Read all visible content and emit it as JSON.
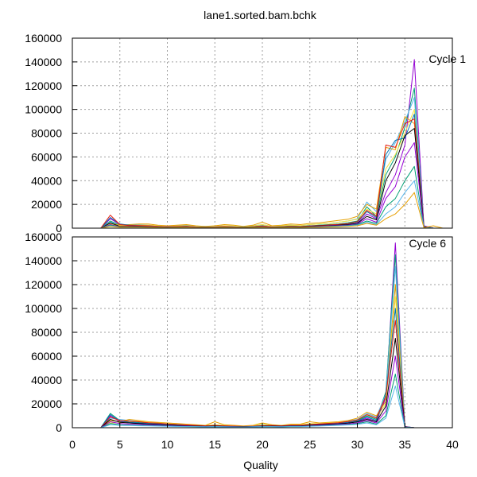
{
  "chart_data": [
    {
      "type": "line",
      "title": "lane1.sorted.bam.bchk",
      "annotation": "Cycle 1",
      "xlabel": "",
      "ylabel": "",
      "xlim": [
        0,
        40
      ],
      "ylim": [
        0,
        160000
      ],
      "x_ticks": [],
      "y_ticks": [
        "0",
        "20000",
        "40000",
        "60000",
        "80000",
        "100000",
        "120000",
        "140000",
        "160000"
      ],
      "grid": true,
      "legend": "none",
      "colors": [
        "#9400d3",
        "#009e73",
        "#56b4e9",
        "#e69f00",
        "#f0e442",
        "#0072b2",
        "#e51e10",
        "#000000"
      ],
      "x": [
        3,
        4,
        5,
        6,
        7,
        8,
        9,
        10,
        11,
        12,
        13,
        14,
        15,
        16,
        17,
        18,
        19,
        20,
        21,
        22,
        23,
        24,
        25,
        26,
        27,
        28,
        29,
        30,
        31,
        32,
        33,
        34,
        35,
        36,
        37,
        38,
        39
      ],
      "series": [
        {
          "values": [
            0,
            8000,
            3000,
            2000,
            2000,
            1500,
            1000,
            1500,
            1000,
            1000,
            1000,
            1000,
            800,
            800,
            800,
            800,
            800,
            900,
            900,
            900,
            1000,
            1000,
            1200,
            1200,
            1500,
            2000,
            3000,
            4000,
            12000,
            8000,
            30000,
            45000,
            70000,
            142000,
            2000,
            0,
            0
          ]
        },
        {
          "values": [
            0,
            6000,
            2500,
            2000,
            2500,
            2000,
            1500,
            1200,
            1500,
            1800,
            1200,
            1000,
            1200,
            1500,
            1000,
            800,
            1500,
            2000,
            1200,
            1500,
            1800,
            1500,
            2000,
            2500,
            3000,
            3500,
            4500,
            6000,
            18000,
            10000,
            45000,
            60000,
            85000,
            118000,
            1500,
            0,
            0
          ]
        },
        {
          "values": [
            0,
            5000,
            2000,
            2500,
            3000,
            2500,
            2000,
            1500,
            2000,
            2500,
            1500,
            1200,
            1500,
            2000,
            1500,
            1000,
            2000,
            3000,
            1500,
            2000,
            2500,
            2000,
            3000,
            3500,
            4000,
            5000,
            6000,
            8000,
            22000,
            14000,
            58000,
            72000,
            90000,
            110000,
            1200,
            0,
            0
          ]
        },
        {
          "values": [
            0,
            4000,
            2500,
            3000,
            3500,
            3500,
            2500,
            2000,
            2500,
            3000,
            2000,
            1500,
            2000,
            3000,
            2500,
            1500,
            2500,
            5000,
            2000,
            2500,
            3500,
            3000,
            4000,
            4500,
            5500,
            6500,
            7500,
            10000,
            20000,
            16000,
            68000,
            66000,
            94000,
            88000,
            1000,
            0,
            0
          ]
        },
        {
          "values": [
            0,
            3500,
            2000,
            2000,
            2500,
            2500,
            2000,
            1500,
            1800,
            2000,
            1500,
            1200,
            1500,
            2000,
            1800,
            1200,
            1800,
            3000,
            1500,
            2000,
            2500,
            2200,
            3000,
            3500,
            4000,
            5000,
            6000,
            7500,
            16000,
            12000,
            50000,
            62000,
            80000,
            100000,
            800,
            0,
            0
          ]
        },
        {
          "values": [
            0,
            9000,
            3500,
            2500,
            2000,
            1800,
            1500,
            1200,
            1200,
            1500,
            1000,
            900,
            1000,
            1200,
            1000,
            900,
            1200,
            1500,
            1000,
            1200,
            1500,
            1300,
            1800,
            2000,
            2500,
            3000,
            3500,
            5000,
            14000,
            9000,
            62000,
            74000,
            76000,
            96000,
            1500,
            0,
            0
          ]
        },
        {
          "values": [
            0,
            11000,
            3000,
            2200,
            2200,
            2000,
            1500,
            1300,
            1400,
            1600,
            1100,
            1000,
            1100,
            1400,
            1100,
            900,
            1300,
            1800,
            1100,
            1300,
            1600,
            1400,
            1900,
            2200,
            2700,
            3200,
            3800,
            5500,
            15000,
            10000,
            70000,
            68000,
            88000,
            92000,
            1200,
            0,
            0
          ]
        },
        {
          "values": [
            0,
            4500,
            1500,
            1500,
            1500,
            1200,
            1000,
            1000,
            1000,
            1200,
            900,
            800,
            900,
            1000,
            900,
            800,
            1000,
            1200,
            900,
            1000,
            1200,
            1100,
            1500,
            1800,
            2000,
            2500,
            3000,
            4000,
            10000,
            7000,
            40000,
            55000,
            78000,
            84000,
            1000,
            0,
            0
          ]
        },
        {
          "values": [
            0,
            3000,
            1200,
            1200,
            1200,
            1000,
            900,
            800,
            900,
            1000,
            800,
            700,
            800,
            900,
            800,
            700,
            900,
            1000,
            800,
            900,
            1000,
            900,
            1200,
            1500,
            1800,
            2200,
            2600,
            3500,
            8000,
            5000,
            25000,
            35000,
            60000,
            72000,
            800,
            0,
            0
          ]
        },
        {
          "values": [
            0,
            2500,
            1000,
            1000,
            1000,
            900,
            800,
            700,
            800,
            900,
            700,
            600,
            700,
            800,
            700,
            600,
            800,
            900,
            700,
            800,
            900,
            800,
            1000,
            1200,
            1500,
            1800,
            2200,
            3000,
            6000,
            4000,
            18000,
            25000,
            40000,
            52000,
            600,
            0,
            0
          ]
        },
        {
          "values": [
            0,
            2000,
            900,
            900,
            900,
            800,
            700,
            600,
            700,
            800,
            600,
            500,
            600,
            700,
            600,
            500,
            700,
            800,
            600,
            700,
            800,
            700,
            900,
            1000,
            1200,
            1500,
            1800,
            2500,
            5000,
            3000,
            12000,
            18000,
            30000,
            40000,
            500,
            0,
            0
          ]
        },
        {
          "values": [
            0,
            1500,
            800,
            800,
            800,
            700,
            600,
            500,
            600,
            700,
            500,
            400,
            500,
            600,
            500,
            400,
            600,
            700,
            500,
            600,
            700,
            600,
            800,
            900,
            1000,
            1200,
            1500,
            2000,
            4000,
            2500,
            8000,
            12000,
            20000,
            30000,
            400,
            2000,
            0
          ]
        }
      ]
    },
    {
      "type": "line",
      "title": "",
      "annotation": "Cycle 6",
      "xlabel": "Quality",
      "ylabel": "",
      "xlim": [
        0,
        40
      ],
      "ylim": [
        0,
        160000
      ],
      "x_ticks": [
        "0",
        "5",
        "10",
        "15",
        "20",
        "25",
        "30",
        "35",
        "40"
      ],
      "y_ticks": [
        "0",
        "20000",
        "40000",
        "60000",
        "80000",
        "100000",
        "120000",
        "140000",
        "160000"
      ],
      "grid": true,
      "legend": "none",
      "colors": [
        "#9400d3",
        "#009e73",
        "#56b4e9",
        "#e69f00",
        "#f0e442",
        "#0072b2",
        "#e51e10",
        "#000000"
      ],
      "x": [
        3,
        4,
        5,
        6,
        7,
        8,
        9,
        10,
        11,
        12,
        13,
        14,
        15,
        16,
        17,
        18,
        19,
        20,
        21,
        22,
        23,
        24,
        25,
        26,
        27,
        28,
        29,
        30,
        31,
        32,
        33,
        34,
        35,
        36
      ],
      "series": [
        {
          "values": [
            0,
            10000,
            5000,
            4000,
            3500,
            3000,
            2500,
            2000,
            1500,
            1500,
            1200,
            1000,
            1200,
            1000,
            800,
            800,
            900,
            1000,
            1200,
            1200,
            1500,
            1500,
            2000,
            2500,
            3000,
            3500,
            4000,
            5000,
            8000,
            5000,
            25000,
            155000,
            1000,
            0
          ]
        },
        {
          "values": [
            0,
            12000,
            6000,
            5000,
            4500,
            4000,
            3500,
            3000,
            2500,
            2000,
            1800,
            1500,
            1800,
            1500,
            1200,
            1000,
            1200,
            1500,
            1800,
            1500,
            2000,
            2000,
            2500,
            3000,
            3500,
            4000,
            5000,
            6000,
            10000,
            7000,
            30000,
            145000,
            800,
            0
          ]
        },
        {
          "values": [
            0,
            8000,
            7000,
            6000,
            5000,
            4500,
            4000,
            3500,
            3000,
            2500,
            2000,
            1800,
            2000,
            1800,
            1500,
            1200,
            1500,
            2000,
            2000,
            1800,
            2500,
            2500,
            3000,
            3500,
            4000,
            4500,
            5500,
            7000,
            12000,
            9000,
            28000,
            135000,
            700,
            0
          ]
        },
        {
          "values": [
            0,
            6000,
            5000,
            7000,
            6000,
            5000,
            4500,
            4000,
            3500,
            3000,
            2500,
            2000,
            5000,
            2500,
            2000,
            1500,
            2000,
            4000,
            2500,
            2000,
            3000,
            3000,
            5000,
            4000,
            4500,
            5000,
            6000,
            8000,
            13000,
            10000,
            22000,
            120000,
            600,
            0
          ]
        },
        {
          "values": [
            0,
            4000,
            4000,
            5000,
            5500,
            4500,
            4000,
            3500,
            3000,
            2500,
            2000,
            1800,
            2500,
            2000,
            1500,
            1200,
            1800,
            3000,
            2000,
            1800,
            2500,
            2500,
            3500,
            3500,
            4000,
            4500,
            5000,
            6500,
            11000,
            8000,
            20000,
            110000,
            500,
            0
          ]
        },
        {
          "values": [
            0,
            11000,
            5500,
            4500,
            4000,
            3500,
            3000,
            2500,
            2000,
            1800,
            1500,
            1300,
            1500,
            1300,
            1000,
            900,
            1100,
            1300,
            1500,
            1400,
            1800,
            1800,
            2300,
            2800,
            3300,
            3800,
            4500,
            5500,
            9000,
            6000,
            27000,
            100000,
            900,
            0
          ]
        },
        {
          "values": [
            0,
            9000,
            6000,
            5500,
            5000,
            4200,
            3800,
            3200,
            2800,
            2300,
            1900,
            1600,
            1900,
            1600,
            1300,
            1100,
            1300,
            1700,
            1900,
            1600,
            2100,
            2100,
            2700,
            3200,
            3700,
            4200,
            5200,
            6500,
            11000,
            8000,
            26000,
            90000,
            700,
            0
          ]
        },
        {
          "values": [
            0,
            7000,
            4500,
            4000,
            3500,
            3000,
            2600,
            2200,
            1800,
            1600,
            1300,
            1100,
            1300,
            1100,
            900,
            800,
            1000,
            1200,
            1300,
            1200,
            1600,
            1600,
            2000,
            2400,
            2800,
            3200,
            3800,
            4800,
            7000,
            5000,
            18000,
            75000,
            600,
            0
          ]
        },
        {
          "values": [
            0,
            5000,
            3500,
            3000,
            2800,
            2500,
            2200,
            1800,
            1500,
            1300,
            1100,
            900,
            1100,
            900,
            800,
            700,
            900,
            1000,
            1100,
            1000,
            1300,
            1300,
            1700,
            2000,
            2400,
            2800,
            3200,
            4000,
            6000,
            4000,
            14000,
            60000,
            500,
            0
          ]
        },
        {
          "values": [
            0,
            3500,
            2500,
            2200,
            2000,
            1800,
            1600,
            1400,
            1200,
            1000,
            900,
            800,
            900,
            800,
            700,
            600,
            800,
            900,
            900,
            800,
            1100,
            1100,
            1400,
            1600,
            2000,
            2300,
            2700,
            3300,
            5000,
            3000,
            10000,
            45000,
            400,
            0
          ]
        },
        {
          "values": [
            0,
            2500,
            2000,
            1800,
            1600,
            1500,
            1300,
            1200,
            1000,
            900,
            800,
            700,
            800,
            700,
            600,
            500,
            700,
            800,
            800,
            700,
            900,
            900,
            1200,
            1400,
            1700,
            2000,
            2300,
            2800,
            4000,
            2500,
            8000,
            35000,
            300,
            0
          ]
        }
      ]
    }
  ]
}
